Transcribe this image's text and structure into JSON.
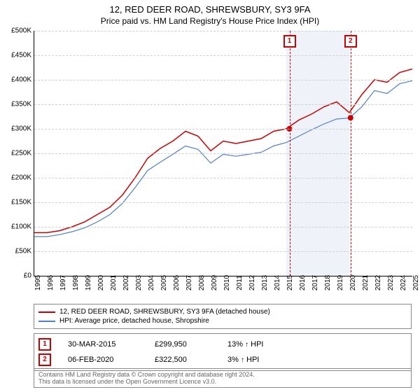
{
  "title": "12, RED DEER ROAD, SHREWSBURY, SY3 9FA",
  "subtitle": "Price paid vs. HM Land Registry's House Price Index (HPI)",
  "chart": {
    "type": "line",
    "background_color": "#ffffff",
    "grid_color": "#d0d0d0",
    "ylim": [
      0,
      500000
    ],
    "ytick_step": 50000,
    "ytick_labels": [
      "£0",
      "£50K",
      "£100K",
      "£150K",
      "£200K",
      "£250K",
      "£300K",
      "£350K",
      "£400K",
      "£450K",
      "£500K"
    ],
    "xlim": [
      1995,
      2025
    ],
    "xtick_step": 1,
    "series": [
      {
        "name": "12, RED DEER ROAD, SHREWSBURY, SY3 9FA (detached house)",
        "color": "#cc0000",
        "line_width": 1.5,
        "data": [
          [
            1995,
            88000
          ],
          [
            1996,
            88000
          ],
          [
            1997,
            92000
          ],
          [
            1998,
            100000
          ],
          [
            1999,
            110000
          ],
          [
            2000,
            125000
          ],
          [
            2001,
            140000
          ],
          [
            2002,
            165000
          ],
          [
            2003,
            200000
          ],
          [
            2004,
            240000
          ],
          [
            2005,
            260000
          ],
          [
            2006,
            275000
          ],
          [
            2007,
            295000
          ],
          [
            2008,
            285000
          ],
          [
            2009,
            255000
          ],
          [
            2010,
            275000
          ],
          [
            2011,
            270000
          ],
          [
            2012,
            275000
          ],
          [
            2013,
            280000
          ],
          [
            2014,
            295000
          ],
          [
            2015,
            300000
          ],
          [
            2016,
            318000
          ],
          [
            2017,
            330000
          ],
          [
            2018,
            345000
          ],
          [
            2019,
            355000
          ],
          [
            2020,
            333000
          ],
          [
            2021,
            370000
          ],
          [
            2022,
            400000
          ],
          [
            2023,
            395000
          ],
          [
            2024,
            415000
          ],
          [
            2025,
            422000
          ]
        ]
      },
      {
        "name": "HPI: Average price, detached house, Shropshire",
        "color": "#5080cc",
        "line_width": 1.2,
        "data": [
          [
            1995,
            80000
          ],
          [
            1996,
            80000
          ],
          [
            1997,
            84000
          ],
          [
            1998,
            90000
          ],
          [
            1999,
            98000
          ],
          [
            2000,
            110000
          ],
          [
            2001,
            125000
          ],
          [
            2002,
            148000
          ],
          [
            2003,
            180000
          ],
          [
            2004,
            215000
          ],
          [
            2005,
            232000
          ],
          [
            2006,
            248000
          ],
          [
            2007,
            265000
          ],
          [
            2008,
            258000
          ],
          [
            2009,
            230000
          ],
          [
            2010,
            248000
          ],
          [
            2011,
            244000
          ],
          [
            2012,
            248000
          ],
          [
            2013,
            252000
          ],
          [
            2014,
            265000
          ],
          [
            2015,
            272000
          ],
          [
            2016,
            285000
          ],
          [
            2017,
            298000
          ],
          [
            2018,
            310000
          ],
          [
            2019,
            320000
          ],
          [
            2020,
            322000
          ],
          [
            2021,
            345000
          ],
          [
            2022,
            378000
          ],
          [
            2023,
            372000
          ],
          [
            2024,
            392000
          ],
          [
            2025,
            398000
          ]
        ]
      }
    ],
    "shaded_region": {
      "x_start": 2015,
      "x_end": 2020,
      "fill": "rgba(100,130,200,0.10)"
    },
    "markers": [
      {
        "label": "1",
        "x": 2015.25,
        "y": 299950,
        "color": "#cc0000"
      },
      {
        "label": "2",
        "x": 2020.1,
        "y": 322500,
        "color": "#cc0000"
      }
    ]
  },
  "legend": {
    "items": [
      {
        "label": "12, RED DEER ROAD, SHREWSBURY, SY3 9FA (detached house)",
        "color": "#cc0000"
      },
      {
        "label": "HPI: Average price, detached house, Shropshire",
        "color": "#5080cc"
      }
    ]
  },
  "transactions": [
    {
      "marker": "1",
      "date": "30-MAR-2015",
      "price": "£299,950",
      "vs_hpi_pct": "13%",
      "vs_hpi_dir": "↑",
      "vs_hpi_lbl": "HPI"
    },
    {
      "marker": "2",
      "date": "06-FEB-2020",
      "price": "£322,500",
      "vs_hpi_pct": "3%",
      "vs_hpi_dir": "↑",
      "vs_hpi_lbl": "HPI"
    }
  ],
  "footer": {
    "line1": "Contains HM Land Registry data © Crown copyright and database right 2024.",
    "line2": "This data is licensed under the Open Government Licence v3.0."
  }
}
